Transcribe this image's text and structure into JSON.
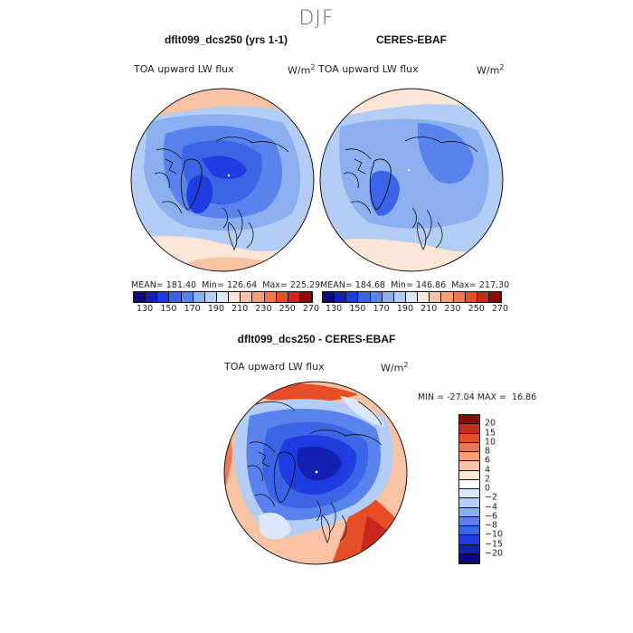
{
  "figure": {
    "season_title": "DJF"
  },
  "panel_left": {
    "title": "dflt099_dcs250 (yrs 1-1)",
    "variable": "TOA upward LW flux",
    "units": "W/m",
    "units_exp": "2",
    "stats": {
      "mean_label": "MEAN=",
      "mean": "181.40",
      "min_label": "Min=",
      "min": "126.64",
      "max_label": "Max=",
      "max": "225.29"
    }
  },
  "panel_right": {
    "title": "CERES-EBAF",
    "variable": "TOA upward LW flux",
    "units": "W/m",
    "units_exp": "2",
    "stats": {
      "mean_label": "MEAN=",
      "mean": "184.68",
      "min_label": "Min=",
      "min": "146.86",
      "max_label": "Max=",
      "max": "217.30"
    }
  },
  "panel_diff": {
    "title": "dflt099_dcs250 - CERES-EBAF",
    "variable": "TOA upward LW flux",
    "units": "W/m",
    "units_exp": "2",
    "stats": {
      "min_label": "MIN =",
      "min": "-27.04",
      "max_label": "MAX =",
      "max": "16.86"
    }
  },
  "colorbar_abs": {
    "labels": [
      "130",
      "150",
      "170",
      "190",
      "210",
      "230",
      "250",
      "270"
    ],
    "colors": [
      "#0a0a7a",
      "#1420b4",
      "#1e3ce0",
      "#3c64e6",
      "#5a82ec",
      "#8cafef",
      "#b4cdf5",
      "#dce8fa",
      "#fce6d8",
      "#f8c3a5",
      "#f5a078",
      "#f07850",
      "#e64e28",
      "#c8281e",
      "#8c0a0a"
    ]
  },
  "colorbar_diff": {
    "labels": [
      "20",
      "15",
      "10",
      "8",
      "6",
      "4",
      "2",
      "0",
      "−2",
      "−4",
      "−6",
      "−8",
      "−10",
      "−15",
      "−20"
    ],
    "colors": [
      "#8c0a0a",
      "#c8281e",
      "#e64e28",
      "#f07850",
      "#f5a078",
      "#f8c3a5",
      "#fce6d8",
      "#ffffff",
      "#dce8fa",
      "#b4cdf5",
      "#8cafef",
      "#5a82ec",
      "#3c64e6",
      "#1e3ce0",
      "#1420b4",
      "#0a0a7a"
    ]
  }
}
